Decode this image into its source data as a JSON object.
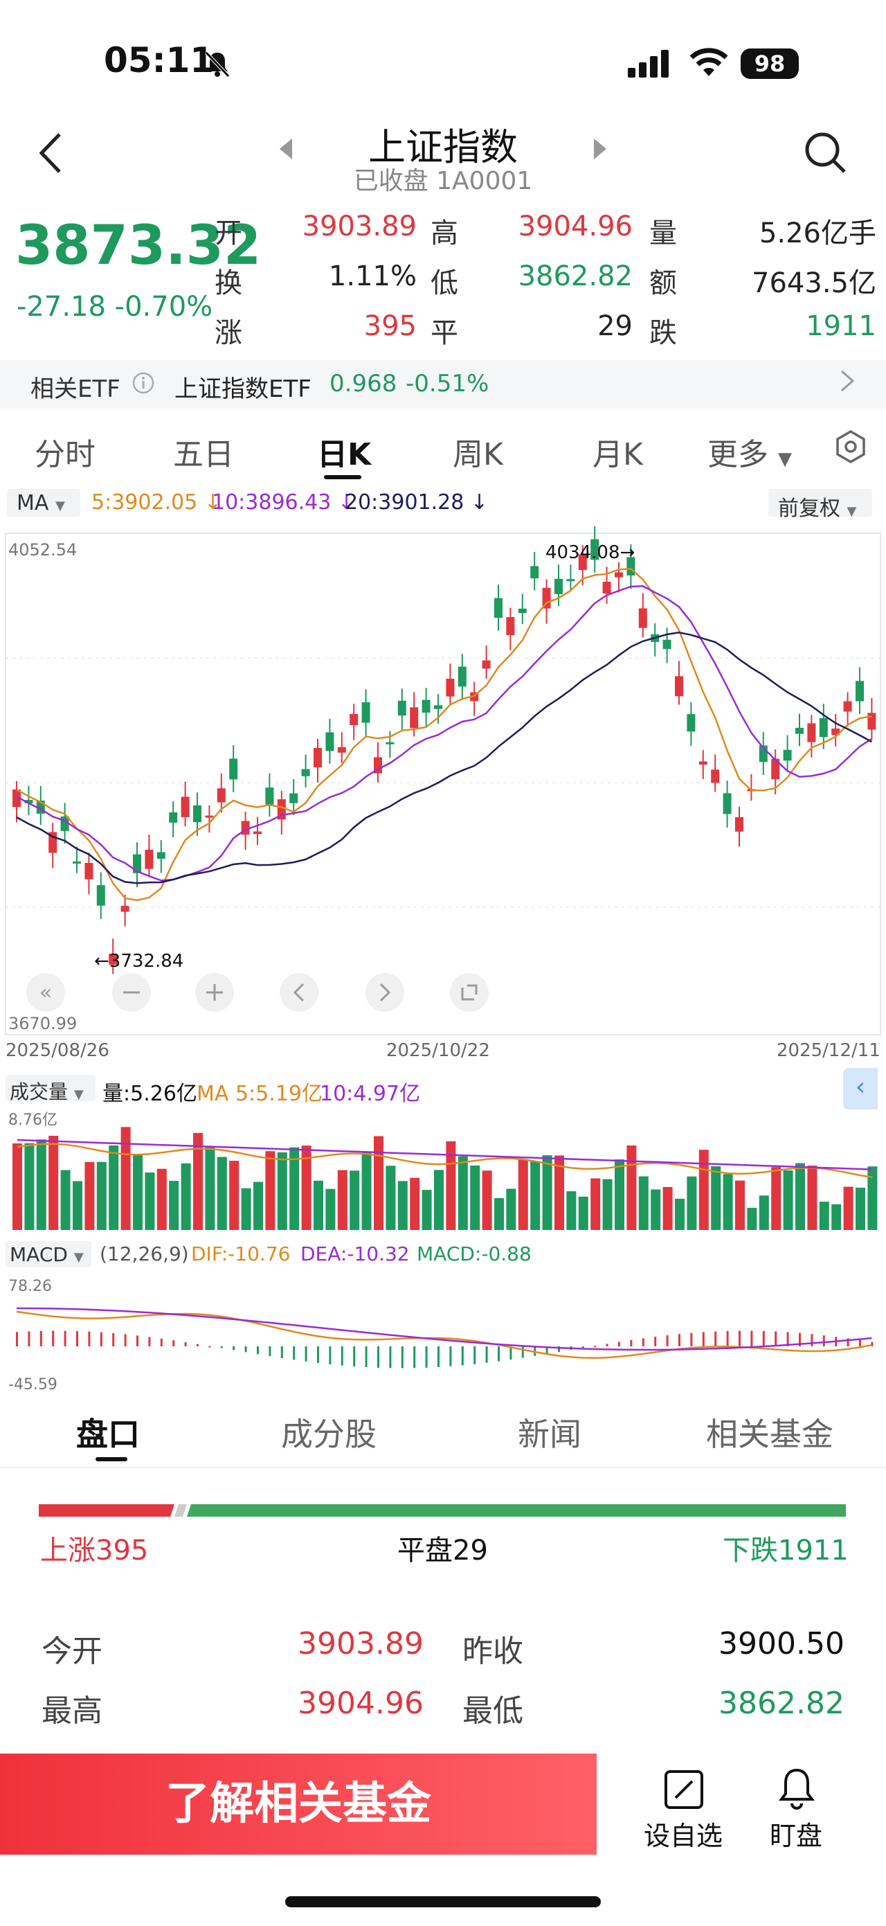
{
  "status": {
    "time": "05:11",
    "battery": "98"
  },
  "header": {
    "title": "上证指数",
    "subtitle": "已收盘 1A0001"
  },
  "quote": {
    "price": "3873.32",
    "change": "-27.18",
    "change_pct": "-0.70%",
    "open_label": "开",
    "open": "3903.89",
    "high_label": "高",
    "high": "3904.96",
    "vol_label": "量",
    "vol": "5.26亿手",
    "turnover_label": "换",
    "turnover": "1.11%",
    "low_label": "低",
    "low": "3862.82",
    "amount_label": "额",
    "amount": "7643.5亿",
    "up_label": "涨",
    "up": "395",
    "flat_label": "平",
    "flat": "29",
    "down_label": "跌",
    "down": "1911"
  },
  "etf": {
    "label": "相关ETF",
    "name": "上证指数ETF",
    "price": "0.968",
    "pct": "-0.51%"
  },
  "tabs": [
    "分时",
    "五日",
    "日K",
    "周K",
    "月K",
    "更多"
  ],
  "active_tab": "日K",
  "ma": {
    "selector": "MA",
    "ma5": "5:3902.05",
    "ma10": "10:3896.43",
    "ma20": "20:3901.28",
    "adjust": "前复权"
  },
  "kchart": {
    "y_top": "4052.54",
    "y_bottom": "3670.99",
    "high_marker": "4034.08",
    "low_marker": "3732.84",
    "dates": [
      "2025/08/26",
      "2025/10/22",
      "2025/12/11"
    ]
  },
  "volume": {
    "selector": "成交量",
    "vol": "量:5.26亿",
    "ma5": "MA 5:5.19亿",
    "ma10": "10:4.97亿",
    "axis": "8.76亿"
  },
  "macd": {
    "selector": "MACD",
    "params": "(12,26,9)",
    "dif": "DIF:-10.76",
    "dea": "DEA:-10.32",
    "macd": "MACD:-0.88",
    "axis_top": "78.26",
    "axis_bottom": "-45.59"
  },
  "bottom_tabs": [
    "盘口",
    "成分股",
    "新闻",
    "相关基金"
  ],
  "breadth": {
    "up": "上涨395",
    "flat": "平盘29",
    "down": "下跌1911"
  },
  "stats": {
    "open_label": "今开",
    "open": "3903.89",
    "prev_label": "昨收",
    "prev": "3900.50",
    "high_label": "最高",
    "high": "3904.96",
    "low_label": "最低",
    "low": "3862.82"
  },
  "cta": "了解相关基金",
  "bottom_actions": {
    "watch": "设自选",
    "monitor": "盯盘"
  },
  "colors": {
    "up": "#e0373f",
    "down": "#1e9a5f",
    "ma5": "#e08a1e",
    "ma10": "#9a2bd6",
    "ma20": "#1c1c5e"
  }
}
